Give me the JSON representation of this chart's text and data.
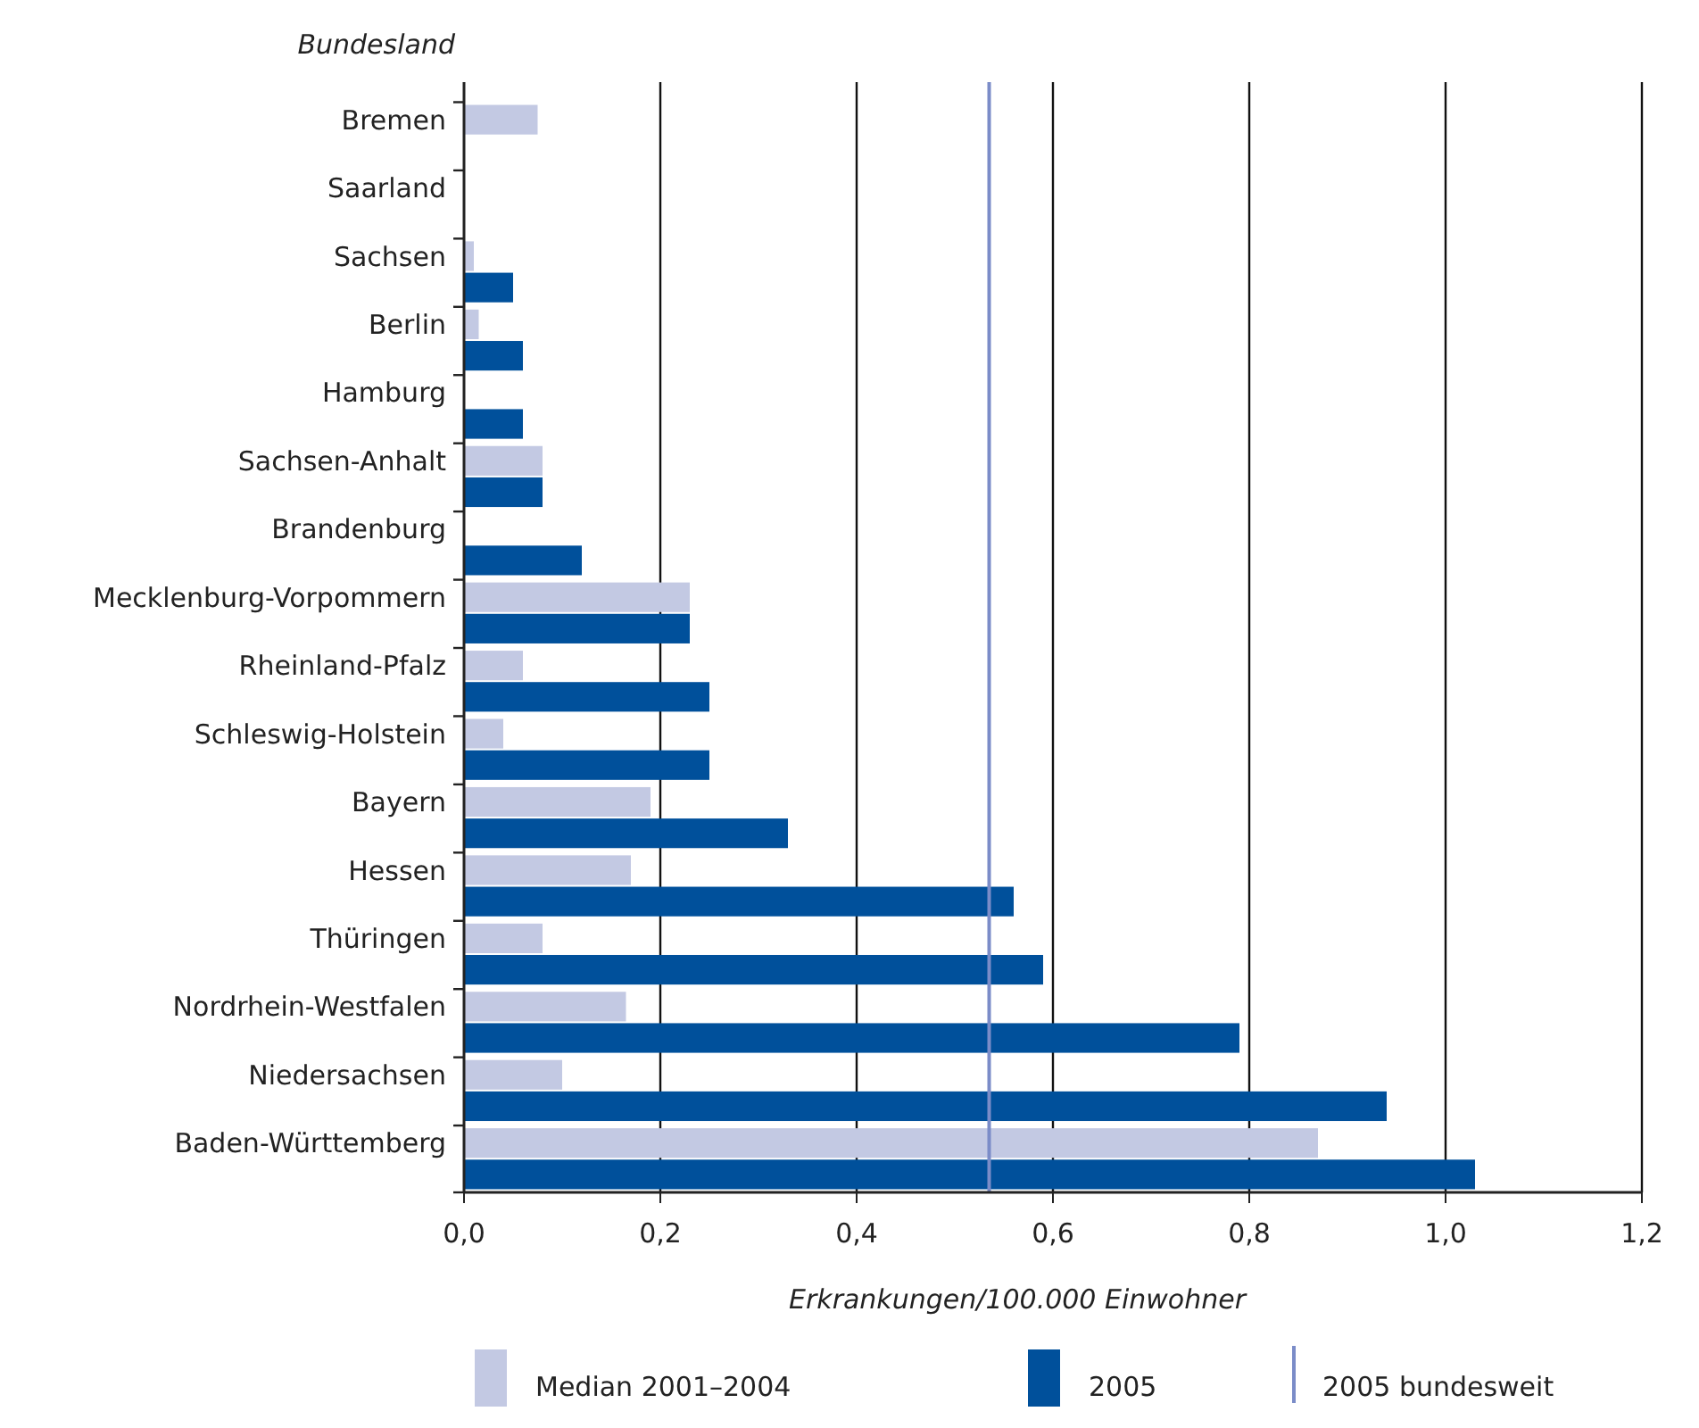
{
  "chart_data": {
    "type": "bar",
    "orientation": "horizontal",
    "ylabel": "Bundesland",
    "xlabel": "Erkrankungen/100.000 Einwohner",
    "categories": [
      "Bremen",
      "Saarland",
      "Sachsen",
      "Berlin",
      "Hamburg",
      "Sachsen-Anhalt",
      "Brandenburg",
      "Mecklenburg-Vorpommern",
      "Rheinland-Pfalz",
      "Schleswig-Holstein",
      "Bayern",
      "Hessen",
      "Thüringen",
      "Nordrhein-Westfalen",
      "Niedersachsen",
      "Baden-Württemberg"
    ],
    "series": [
      {
        "name": "Median 2001–2004",
        "color": "#c3c9e3",
        "values": [
          0.075,
          0,
          0.01,
          0.015,
          0,
          0.08,
          0,
          0.23,
          0.06,
          0.04,
          0.19,
          0.17,
          0.08,
          0.165,
          0.1,
          0.87
        ]
      },
      {
        "name": "2005",
        "color": "#00509b",
        "values": [
          0,
          0,
          0.05,
          0.06,
          0.06,
          0.08,
          0.12,
          0.23,
          0.25,
          0.25,
          0.33,
          0.56,
          0.59,
          0.79,
          0.94,
          1.03
        ]
      }
    ],
    "xlim": [
      0,
      1.2
    ],
    "xticks": [
      {
        "value": 0,
        "label": "0,0"
      },
      {
        "value": 0.2,
        "label": "0,2"
      },
      {
        "value": 0.4,
        "label": "0,4"
      },
      {
        "value": 0.6,
        "label": "0,6"
      },
      {
        "value": 0.8,
        "label": "0,8"
      },
      {
        "value": 1,
        "label": "1,0"
      },
      {
        "value": 1.2,
        "label": "1,2"
      }
    ],
    "ref_lines": [
      {
        "axis": "x",
        "value": 0.535,
        "label": "2005 bundesweit",
        "color": "#7b8cc8"
      }
    ],
    "grid": "x",
    "legend": "bottom"
  }
}
